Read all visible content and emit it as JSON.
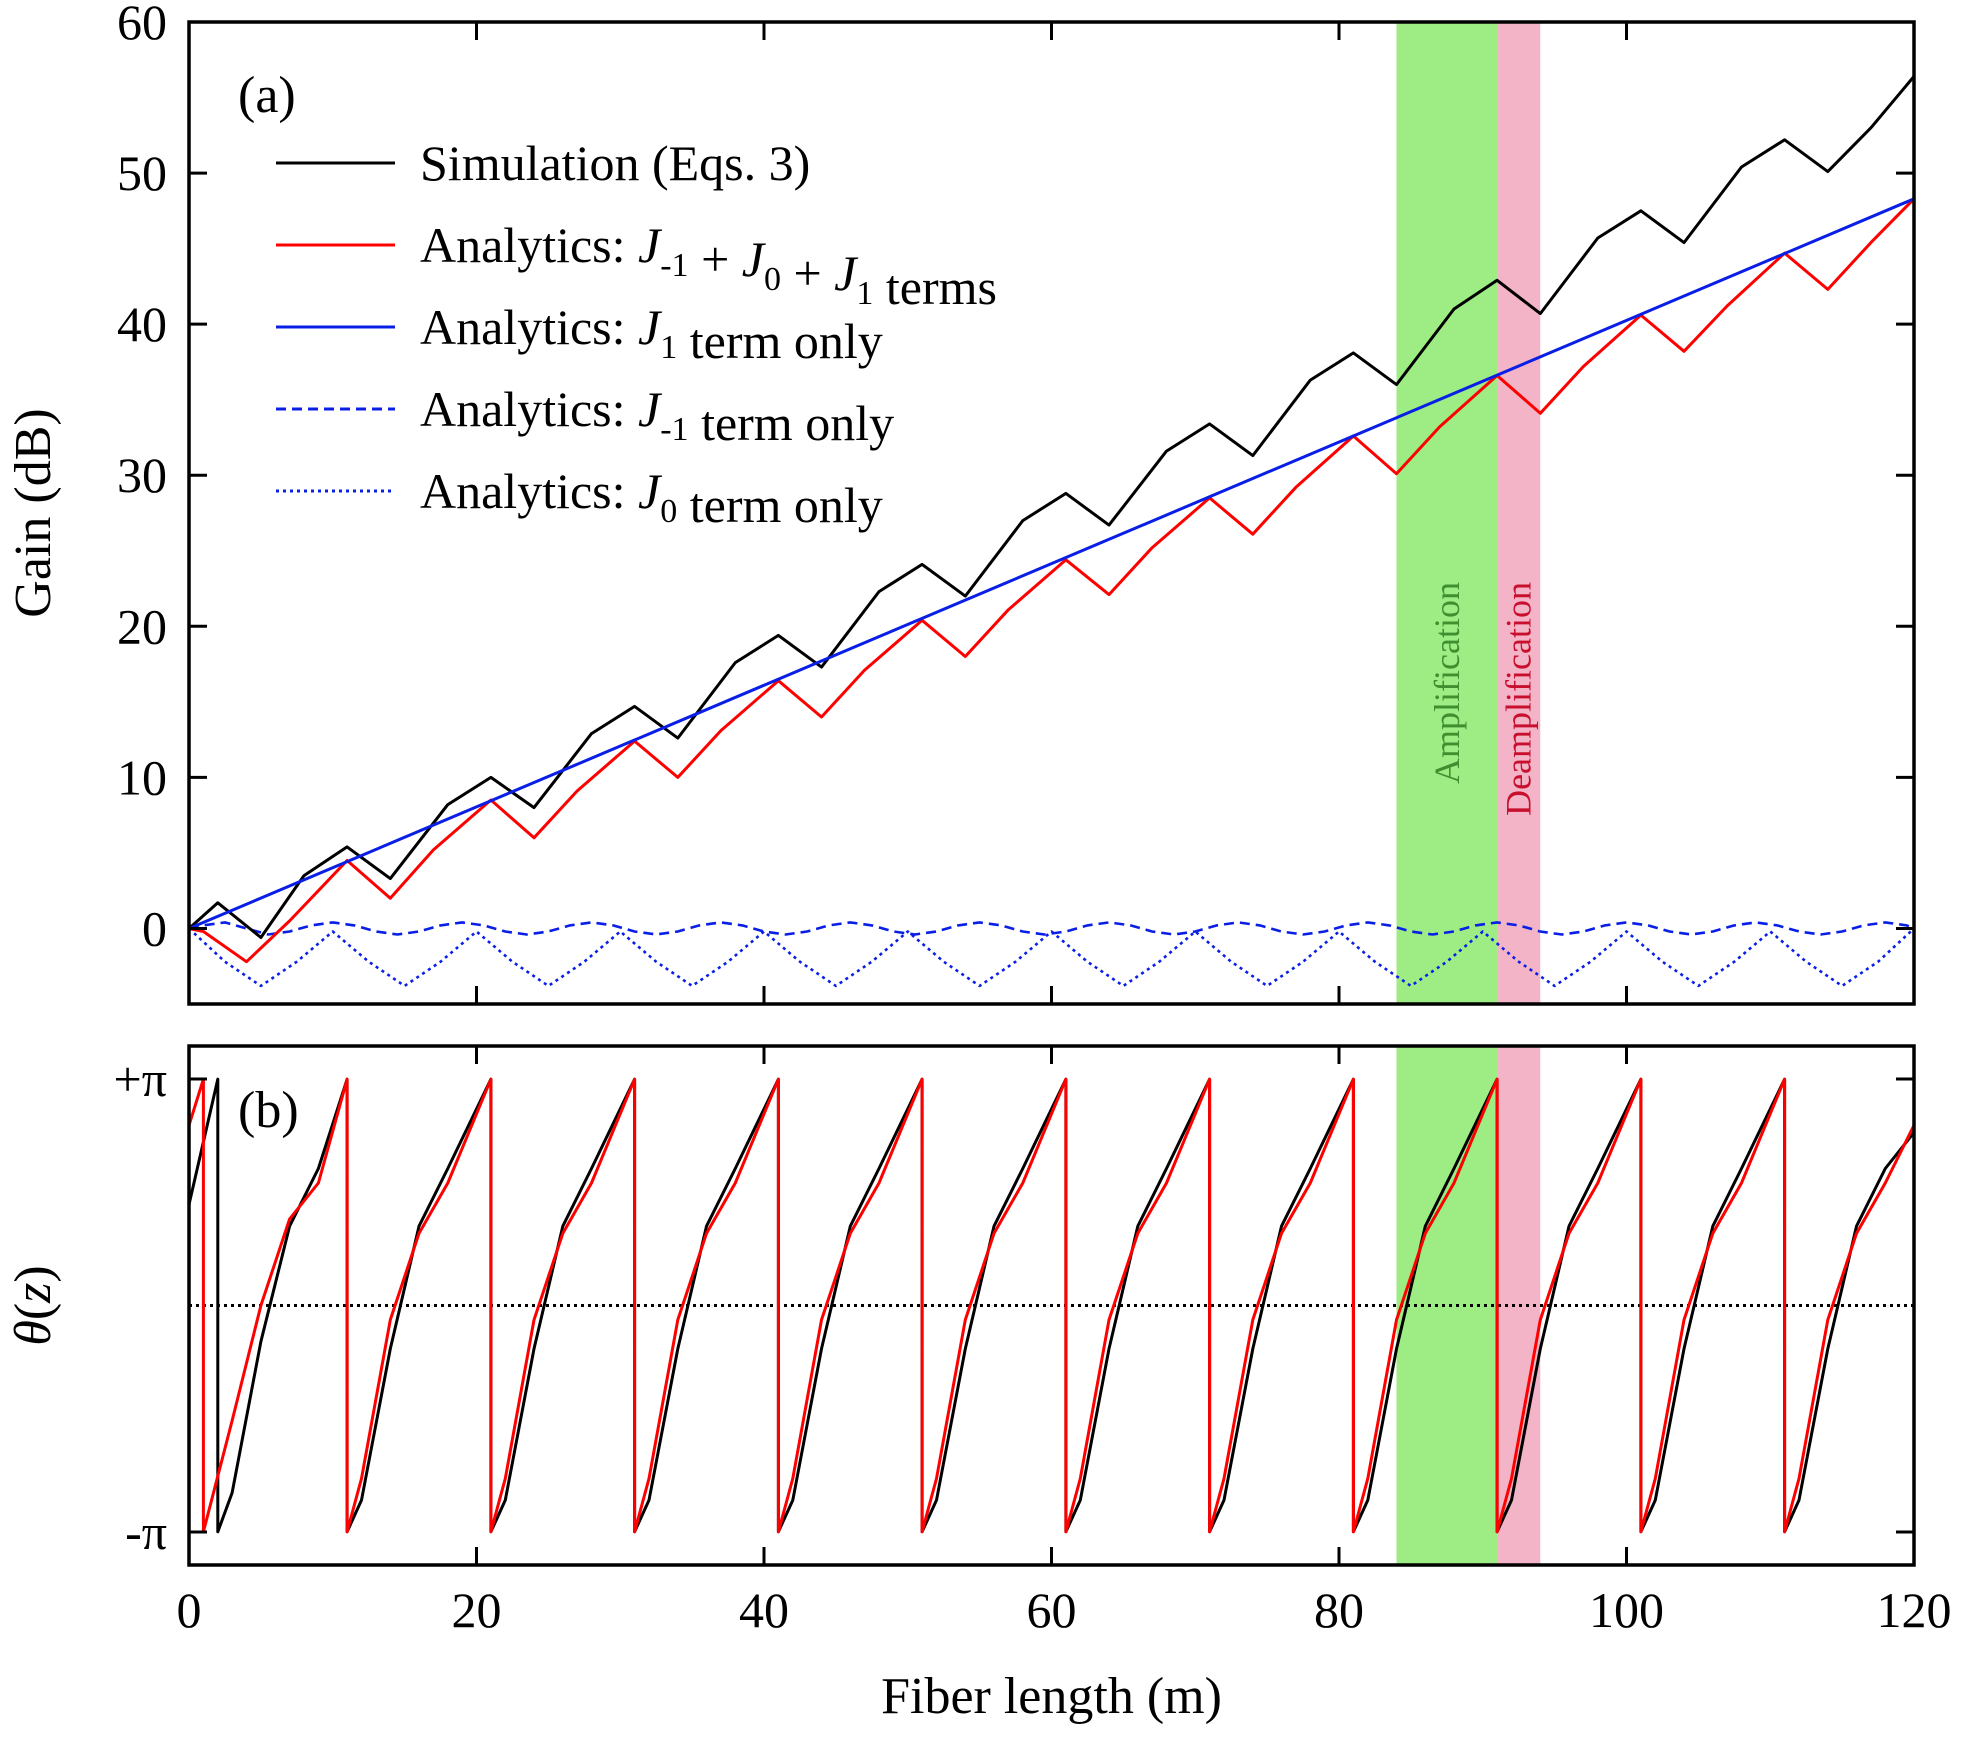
{
  "chart_data": [
    {
      "panel": "(a)",
      "type": "line",
      "xlabel": "Fiber length (m)",
      "ylabel": "Gain (dB)",
      "xlim": [
        0,
        120
      ],
      "ylim": [
        -5,
        60
      ],
      "xticks": [
        0,
        20,
        40,
        60,
        80,
        100,
        120
      ],
      "yticks": [
        0,
        10,
        20,
        30,
        40,
        50,
        60
      ],
      "legend_position": "top-left",
      "regions": [
        {
          "label": "Amplification",
          "x": [
            84,
            91
          ],
          "color": "#9ded84",
          "text_color": "#3f8f30"
        },
        {
          "label": "Deamplification",
          "x": [
            91,
            94
          ],
          "color": "#f2b4c6",
          "text_color": "#c8102e"
        }
      ],
      "series": [
        {
          "name": "Simulation (Eqs. 3)",
          "legend": {
            "pre": "Simulation (Eqs. 3)",
            "parts": []
          },
          "color": "#000000",
          "style": "solid",
          "x": [
            0,
            2,
            5,
            8,
            11,
            14,
            18,
            21,
            24,
            28,
            31,
            34,
            38,
            41,
            44,
            48,
            51,
            54,
            58,
            61,
            64,
            68,
            71,
            74,
            78,
            81,
            84,
            88,
            91,
            94,
            98,
            101,
            104,
            108,
            111,
            114,
            117,
            120
          ],
          "values": [
            0,
            1.7,
            -0.6,
            3.5,
            5.4,
            3.3,
            8.2,
            10.0,
            8.0,
            12.9,
            14.7,
            12.6,
            17.6,
            19.4,
            17.3,
            22.3,
            24.1,
            22.0,
            27.0,
            28.8,
            26.7,
            31.6,
            33.4,
            31.3,
            36.3,
            38.1,
            36.0,
            41.0,
            42.9,
            40.7,
            45.7,
            47.5,
            45.4,
            50.4,
            52.2,
            50.1,
            53.0,
            56.4
          ]
        },
        {
          "name": "Analytics: J-1 + J0 + J1 terms",
          "legend": {
            "pre": "Analytics: ",
            "parts": [
              [
                "J",
                "-1"
              ],
              [
                " + "
              ],
              [
                "J",
                "0"
              ],
              [
                " + "
              ],
              [
                "J",
                "1"
              ],
              [
                " terms"
              ]
            ]
          },
          "color": "#ff0000",
          "style": "solid",
          "x": [
            0,
            1,
            4,
            7,
            11,
            14,
            17,
            21,
            24,
            27,
            31,
            34,
            37,
            41,
            44,
            47,
            51,
            54,
            57,
            61,
            64,
            67,
            71,
            74,
            77,
            81,
            84,
            87,
            91,
            94,
            97,
            101,
            104,
            107,
            111,
            114,
            117,
            120
          ],
          "values": [
            0,
            -0.2,
            -2.2,
            0.5,
            4.5,
            2.0,
            5.2,
            8.5,
            6.0,
            9.1,
            12.4,
            10.0,
            13.1,
            16.4,
            14.0,
            17.1,
            20.4,
            18.0,
            21.1,
            24.4,
            22.1,
            25.2,
            28.5,
            26.1,
            29.2,
            32.6,
            30.1,
            33.2,
            36.6,
            34.1,
            37.2,
            40.6,
            38.2,
            41.2,
            44.7,
            42.3,
            45.4,
            48.3
          ]
        },
        {
          "name": "Analytics: J1 term only",
          "legend": {
            "pre": "Analytics: ",
            "parts": [
              [
                "J",
                "1"
              ],
              [
                " term only"
              ]
            ]
          },
          "color": "#0a1fe6",
          "style": "solid",
          "x": [
            0,
            120
          ],
          "values": [
            0,
            48.3
          ]
        },
        {
          "name": "Analytics: J-1 term only",
          "legend": {
            "pre": "Analytics: ",
            "parts": [
              [
                "J",
                "-1"
              ],
              [
                " term only"
              ]
            ]
          },
          "color": "#0a1fe6",
          "style": "dashed",
          "x": [
            0,
            1,
            2.5,
            4,
            5.5,
            7,
            8.5,
            10,
            11.5,
            13,
            14.5,
            16,
            17.5,
            19,
            20.5,
            22,
            23.5,
            25,
            26.5,
            28,
            29.5,
            31,
            32.5,
            34,
            35.5,
            37,
            38.5,
            40,
            41.5,
            43,
            44.5,
            46,
            47.5,
            49,
            50.5,
            52,
            53.5,
            55,
            56.5,
            58,
            59.5,
            61,
            62.5,
            64,
            65.5,
            67,
            68.5,
            70,
            71.5,
            73,
            74.5,
            76,
            77.5,
            79,
            80.5,
            82,
            83.5,
            85,
            86.5,
            88,
            89.5,
            91,
            92.5,
            94,
            95.5,
            97,
            98.5,
            100,
            101.5,
            103,
            104.5,
            106,
            107.5,
            109,
            110.5,
            112,
            113.5,
            115,
            116.5,
            118,
            119.5,
            120
          ],
          "values": [
            0,
            0.2,
            0.4,
            0.0,
            -0.4,
            -0.2,
            0.2,
            0.4,
            0.2,
            -0.2,
            -0.4,
            -0.2,
            0.2,
            0.4,
            0.2,
            -0.2,
            -0.4,
            -0.2,
            0.2,
            0.4,
            0.2,
            -0.2,
            -0.4,
            -0.2,
            0.2,
            0.4,
            0.2,
            -0.2,
            -0.4,
            -0.2,
            0.2,
            0.4,
            0.2,
            -0.2,
            -0.4,
            -0.2,
            0.2,
            0.4,
            0.2,
            -0.2,
            -0.4,
            -0.2,
            0.2,
            0.4,
            0.2,
            -0.2,
            -0.4,
            -0.2,
            0.2,
            0.4,
            0.2,
            -0.2,
            -0.4,
            -0.2,
            0.2,
            0.4,
            0.2,
            -0.2,
            -0.4,
            -0.2,
            0.2,
            0.4,
            0.2,
            -0.2,
            -0.4,
            -0.2,
            0.2,
            0.4,
            0.2,
            -0.2,
            -0.4,
            -0.2,
            0.2,
            0.4,
            0.2,
            -0.2,
            -0.4,
            -0.2,
            0.2,
            0.4,
            0.2,
            0.0
          ]
        },
        {
          "name": "Analytics: J0 term only",
          "legend": {
            "pre": "Analytics: ",
            "parts": [
              [
                "J",
                "0"
              ],
              [
                " term only"
              ]
            ]
          },
          "color": "#0a1fe6",
          "style": "dotted",
          "x": [
            0,
            2.5,
            5,
            7.5,
            10,
            12.5,
            15,
            17.5,
            20,
            22.5,
            25,
            27.5,
            30,
            32.5,
            35,
            37.5,
            40,
            42.5,
            45,
            47.5,
            50,
            52.5,
            55,
            57.5,
            60,
            62.5,
            65,
            67.5,
            70,
            72.5,
            75,
            77.5,
            80,
            82.5,
            85,
            87.5,
            90,
            92.5,
            95,
            97.5,
            100,
            102.5,
            105,
            107.5,
            110,
            112.5,
            115,
            117.5,
            120
          ],
          "values": [
            0,
            -2.2,
            -3.8,
            -2.2,
            -0.2,
            -2.2,
            -3.8,
            -2.2,
            -0.2,
            -2.2,
            -3.8,
            -2.2,
            -0.2,
            -2.2,
            -3.8,
            -2.2,
            -0.2,
            -2.2,
            -3.8,
            -2.2,
            -0.2,
            -2.2,
            -3.8,
            -2.2,
            -0.2,
            -2.2,
            -3.8,
            -2.2,
            -0.2,
            -2.2,
            -3.8,
            -2.2,
            -0.2,
            -2.2,
            -3.8,
            -2.2,
            -0.2,
            -2.2,
            -3.8,
            -2.2,
            -0.2,
            -2.2,
            -3.8,
            -2.2,
            -0.2,
            -2.2,
            -3.8,
            -2.2,
            0
          ]
        }
      ]
    },
    {
      "panel": "(b)",
      "type": "line",
      "xlabel": "Fiber length (m)",
      "ylabel": "θ(z)",
      "xlim": [
        0,
        120
      ],
      "ylim": [
        -3.6,
        3.6
      ],
      "xticks": [
        0,
        20,
        40,
        60,
        80,
        100,
        120
      ],
      "yticks": [
        -3.1416,
        3.1416
      ],
      "ytick_labels": [
        "-π",
        "+π"
      ],
      "reference_line": {
        "y": 0,
        "style": "dotted",
        "color": "#000000"
      },
      "regions": [
        {
          "label": "",
          "x": [
            84,
            91
          ],
          "color": "#9ded84"
        },
        {
          "label": "",
          "x": [
            91,
            94
          ],
          "color": "#f2b4c6"
        }
      ],
      "series": [
        {
          "name": "Simulation (Eqs. 3)",
          "color": "#000000",
          "style": "solid",
          "x": [
            0,
            2,
            2,
            3,
            5,
            7,
            9,
            11,
            11,
            12,
            14,
            16,
            18,
            21,
            21,
            22,
            24,
            26,
            28,
            31,
            31,
            32,
            34,
            36,
            38,
            41,
            41,
            42,
            44,
            46,
            48,
            51,
            51,
            52,
            54,
            56,
            58,
            61,
            61,
            62,
            64,
            66,
            68,
            71,
            71,
            72,
            74,
            76,
            78,
            81,
            81,
            82,
            84,
            86,
            88,
            91,
            91,
            92,
            94,
            96,
            98,
            101,
            101,
            102,
            104,
            106,
            108,
            111,
            111,
            112,
            114,
            116,
            118,
            120
          ],
          "values": [
            1.4,
            3.14,
            -3.14,
            -2.6,
            -0.5,
            1.1,
            1.9,
            3.14,
            -3.14,
            -2.7,
            -0.6,
            1.1,
            1.9,
            3.14,
            -3.14,
            -2.7,
            -0.6,
            1.1,
            1.9,
            3.14,
            -3.14,
            -2.7,
            -0.6,
            1.1,
            1.9,
            3.14,
            -3.14,
            -2.7,
            -0.6,
            1.1,
            1.9,
            3.14,
            -3.14,
            -2.7,
            -0.6,
            1.1,
            1.9,
            3.14,
            -3.14,
            -2.7,
            -0.6,
            1.1,
            1.9,
            3.14,
            -3.14,
            -2.7,
            -0.6,
            1.1,
            1.9,
            3.14,
            -3.14,
            -2.7,
            -0.6,
            1.1,
            1.9,
            3.14,
            -3.14,
            -2.7,
            -0.6,
            1.1,
            1.9,
            3.14,
            -3.14,
            -2.7,
            -0.6,
            1.1,
            1.9,
            3.14,
            -3.14,
            -2.7,
            -0.6,
            1.1,
            1.9,
            2.4
          ]
        },
        {
          "name": "Analytics: J-1 + J0 + J1 terms",
          "color": "#ff0000",
          "style": "solid",
          "x": [
            0,
            1,
            1,
            3,
            5,
            7,
            9,
            11,
            11,
            12,
            14,
            16,
            18,
            21,
            21,
            22,
            24,
            26,
            28,
            31,
            31,
            32,
            34,
            36,
            38,
            41,
            41,
            42,
            44,
            46,
            48,
            51,
            51,
            52,
            54,
            56,
            58,
            61,
            61,
            62,
            64,
            66,
            68,
            71,
            71,
            72,
            74,
            76,
            78,
            81,
            81,
            82,
            84,
            86,
            88,
            91,
            91,
            92,
            94,
            96,
            98,
            101,
            101,
            102,
            104,
            106,
            108,
            111,
            111,
            112,
            114,
            116,
            118,
            120
          ],
          "values": [
            2.5,
            3.14,
            -3.14,
            -1.6,
            0.0,
            1.2,
            1.7,
            3.14,
            -3.14,
            -2.4,
            -0.2,
            1.0,
            1.7,
            3.14,
            -3.14,
            -2.4,
            -0.2,
            1.0,
            1.7,
            3.14,
            -3.14,
            -2.4,
            -0.2,
            1.0,
            1.7,
            3.14,
            -3.14,
            -2.4,
            -0.2,
            1.0,
            1.7,
            3.14,
            -3.14,
            -2.4,
            -0.2,
            1.0,
            1.7,
            3.14,
            -3.14,
            -2.4,
            -0.2,
            1.0,
            1.7,
            3.14,
            -3.14,
            -2.4,
            -0.2,
            1.0,
            1.7,
            3.14,
            -3.14,
            -2.4,
            -0.2,
            1.0,
            1.7,
            3.14,
            -3.14,
            -2.4,
            -0.2,
            1.0,
            1.7,
            3.14,
            -3.14,
            -2.4,
            -0.2,
            1.0,
            1.7,
            3.14,
            -3.14,
            -2.4,
            -0.2,
            1.0,
            1.7,
            2.5
          ]
        }
      ]
    }
  ]
}
